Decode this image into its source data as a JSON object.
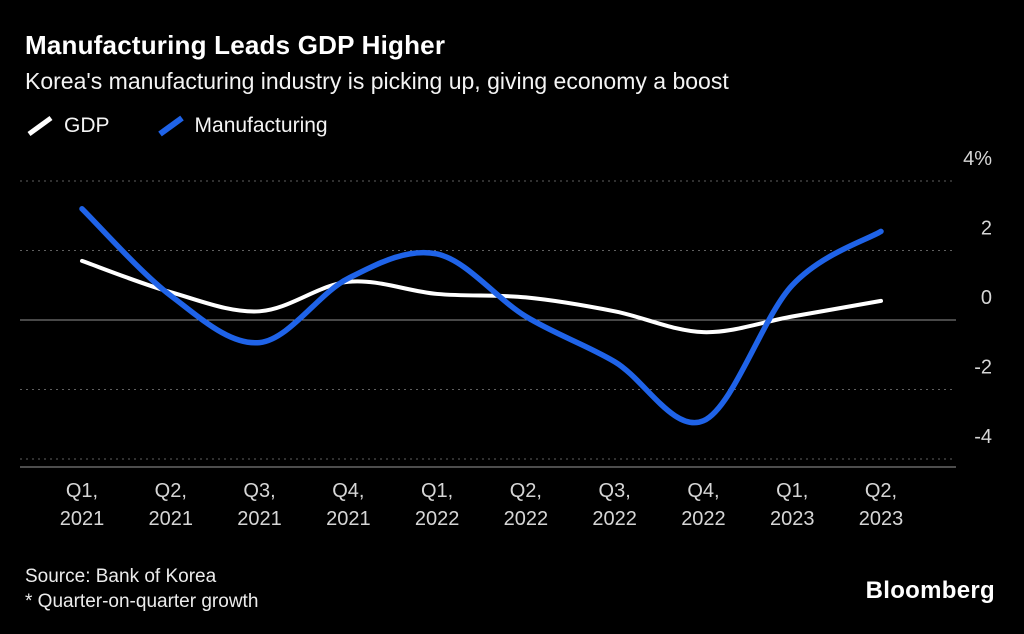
{
  "header": {
    "title": "Manufacturing Leads GDP Higher",
    "subtitle": "Korea's manufacturing industry is picking up, giving economy a boost"
  },
  "legend": [
    {
      "label": "GDP",
      "color": "#ffffff"
    },
    {
      "label": "Manufacturing",
      "color": "#1f63e8"
    }
  ],
  "chart_data": {
    "type": "line",
    "categories": [
      "Q1, 2021",
      "Q2, 2021",
      "Q3, 2021",
      "Q4, 2021",
      "Q1, 2022",
      "Q2, 2022",
      "Q3, 2022",
      "Q4, 2022",
      "Q1, 2023",
      "Q2, 2023"
    ],
    "series": [
      {
        "name": "GDP",
        "color": "#ffffff",
        "values": [
          1.7,
          0.8,
          0.25,
          1.1,
          0.75,
          0.65,
          0.25,
          -0.35,
          0.1,
          0.55
        ]
      },
      {
        "name": "Manufacturing",
        "color": "#1f63e8",
        "values": [
          3.2,
          0.7,
          -0.65,
          1.2,
          1.9,
          0.1,
          -1.2,
          -2.9,
          1.0,
          2.55
        ]
      }
    ],
    "y_ticks": [
      {
        "value": 4,
        "label": "4%"
      },
      {
        "value": 2,
        "label": "2"
      },
      {
        "value": 0,
        "label": "0"
      },
      {
        "value": -2,
        "label": "-2"
      },
      {
        "value": -4,
        "label": "-4"
      }
    ],
    "ylim": [
      -4,
      4
    ],
    "grid": "dotted horizontal, solid zero line, solid bottom axis",
    "legend_position": "top-left",
    "units": "% quarter-on-quarter growth"
  },
  "footer": {
    "source": "Source: Bank of Korea",
    "note": "* Quarter-on-quarter growth",
    "brand": "Bloomberg"
  },
  "colors": {
    "background": "#000000",
    "gdp_line": "#ffffff",
    "manufacturing_line": "#1f63e8",
    "gridline": "#606060",
    "axis_text": "#d6d6d6"
  }
}
